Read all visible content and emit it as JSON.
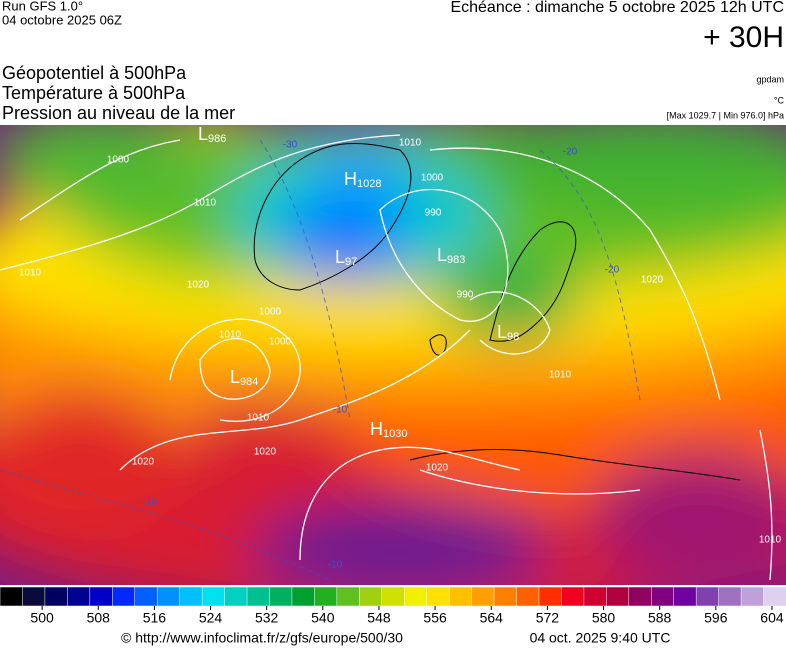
{
  "header": {
    "run": "Run GFS 1.0°",
    "date": "04 octobre 2025 06Z",
    "echeance": "Echéance : dimanche 5 octobre 2025 12h UTC",
    "lead": "+ 30H",
    "fields": [
      "Géopotentiel à 500hPa",
      "Température à 500hPa",
      "Pression au niveau de la mer"
    ],
    "units": [
      "gpdam",
      "°C"
    ],
    "extremes": "[Max 1029.7 | Min 976.0] hPa"
  },
  "map": {
    "centers": [
      {
        "type": "L",
        "value": "986"
      },
      {
        "type": "H",
        "value": "1028"
      },
      {
        "type": "L",
        "value": "97"
      },
      {
        "type": "L",
        "value": "983"
      },
      {
        "type": "L",
        "value": "98"
      },
      {
        "type": "L",
        "value": "984"
      },
      {
        "type": "H",
        "value": "1030"
      }
    ],
    "isobar_labels": [
      "1010",
      "1000",
      "1010",
      "1020",
      "1010",
      "1000",
      "1000",
      "1010",
      "1020",
      "1020",
      "990",
      "1000",
      "990",
      "1010",
      "1020",
      "1010",
      "1020",
      "1010"
    ],
    "temperature_labels": [
      "-30",
      "-20",
      "-10",
      "-10",
      "-20",
      "-10"
    ]
  },
  "colorbar": {
    "range": [
      494,
      606
    ],
    "ticks": [
      500,
      508,
      516,
      524,
      532,
      540,
      548,
      556,
      564,
      572,
      580,
      588,
      596,
      604
    ],
    "colors": [
      "#000000",
      "#0a0a3c",
      "#000060",
      "#000090",
      "#0000c8",
      "#0028ff",
      "#0060ff",
      "#0090ff",
      "#00c0ff",
      "#00e0f0",
      "#00d0c0",
      "#00c090",
      "#00b060",
      "#00a030",
      "#20b020",
      "#60c020",
      "#a0d010",
      "#d0e000",
      "#f0f000",
      "#ffe000",
      "#ffc000",
      "#ffa000",
      "#ff8000",
      "#ff6000",
      "#ff3000",
      "#f00020",
      "#d00030",
      "#b00040",
      "#900060",
      "#800080",
      "#7000a0",
      "#8040b0",
      "#a070c0",
      "#c0a0d8",
      "#e0d0f0"
    ]
  },
  "footer": {
    "url": "© http://www.infoclimat.fr/z/gfs/europe/500/30",
    "timestamp": "04 oct. 2025  9:40 UTC"
  }
}
